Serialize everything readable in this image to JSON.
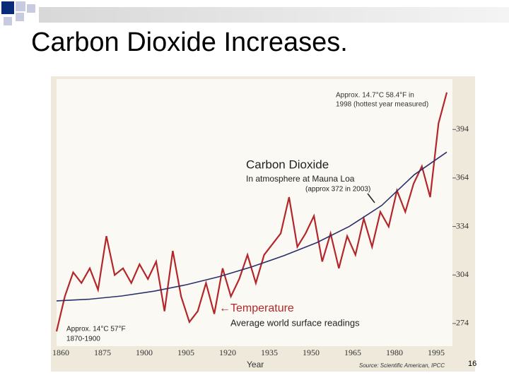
{
  "slide": {
    "title": "Carbon Dioxide Increases.",
    "page_number": "16"
  },
  "chart_data": {
    "type": "line",
    "x_label": "Year",
    "x_labels": [
      "1860",
      "1875",
      "1900",
      "1905",
      "1920",
      "1935",
      "1950",
      "1965",
      "1980",
      "1995"
    ],
    "ylim": [
      56.5,
      58.5
    ],
    "y2lim": [
      260,
      426
    ],
    "y2ticks": [
      274,
      304,
      334,
      364,
      394
    ],
    "series": [
      {
        "name": "Temperature",
        "color": "#b3262a",
        "values": [
          56.61,
          56.87,
          57.05,
          56.97,
          57.08,
          56.92,
          57.32,
          57.03,
          57.08,
          56.97,
          57.11,
          57.0,
          57.13,
          56.76,
          57.21,
          56.87,
          56.68,
          56.76,
          56.97,
          56.74,
          57.08,
          56.87,
          57.0,
          57.18,
          56.97,
          57.18,
          57.26,
          57.34,
          57.61,
          57.24,
          57.34,
          57.47,
          57.13,
          57.34,
          57.08,
          57.32,
          57.18,
          57.45,
          57.24,
          57.5,
          57.39,
          57.66,
          57.5,
          57.71,
          57.84,
          57.61,
          58.16,
          58.39
        ]
      },
      {
        "name": "Carbon Dioxide",
        "color": "#2b2f6b",
        "axis": "y2",
        "values": [
          288,
          289,
          291,
          294,
          298,
          303,
          309,
          316,
          324,
          334,
          347,
          366,
          380
        ]
      }
    ],
    "annotations": [
      "Approx. 14.7°C 58.4°F in",
      "1998 (hottest year measured)",
      "In atmosphere at Mauna Loa",
      "(approx 372 in 2003)",
      "Average world surface readings",
      "Approx. 14°C 57°F",
      "1870-1900"
    ],
    "source": "Source: Scientific American, IPCC"
  }
}
